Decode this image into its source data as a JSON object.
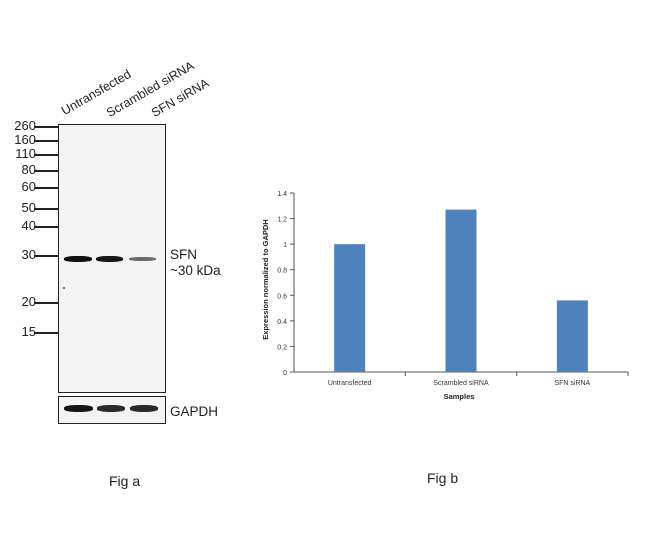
{
  "figure_a": {
    "lanes": [
      "Untransfected",
      "Scrambled siRNA",
      "SFN siRNA"
    ],
    "markers": [
      "260",
      "160",
      "110",
      "80",
      "60",
      "50",
      "40",
      "30",
      "20",
      "15"
    ],
    "band_label_line1": "SFN",
    "band_label_line2": "~30 kDa",
    "loading_control_label": "GAPDH",
    "caption": "Fig a",
    "sfn_band_intensity": [
      1.0,
      0.98,
      0.55
    ],
    "gapdh_band_intensity": [
      1.0,
      0.95,
      0.95
    ]
  },
  "figure_b": {
    "caption": "Fig b"
  },
  "chart_data": {
    "type": "bar",
    "categories": [
      "Untransfected",
      "Scrambled siRNA",
      "SFN siRNA"
    ],
    "values": [
      1.0,
      1.27,
      0.56
    ],
    "xlabel": "Samples",
    "ylabel": "Expression normalized to GAPDH",
    "ylim": [
      0,
      1.4
    ],
    "yticks": [
      "0",
      "0.2",
      "0.4",
      "0.6",
      "0.8",
      "1",
      "1.2",
      "1.4"
    ],
    "bar_color": "#4f81bd",
    "grid": false
  }
}
